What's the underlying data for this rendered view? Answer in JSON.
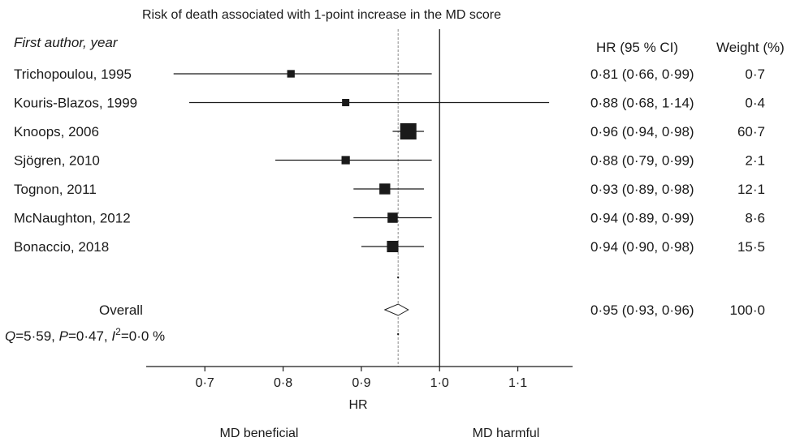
{
  "chart_data": {
    "type": "forest",
    "title": "Risk of death associated with 1-point increase in the MD score",
    "column_headers": {
      "study": "First author, year",
      "effect": "HR (95 % CI)",
      "weight": "Weight (%)"
    },
    "studies": [
      {
        "label": "Trichopoulou, 1995",
        "hr": 0.81,
        "lower": 0.66,
        "upper": 0.99,
        "hr_text": "0·81 (0·66, 0·99)",
        "weight": 0.7,
        "weight_text": "0·7"
      },
      {
        "label": "Kouris-Blazos, 1999",
        "hr": 0.88,
        "lower": 0.68,
        "upper": 1.14,
        "hr_text": "0·88 (0·68, 1·14)",
        "weight": 0.4,
        "weight_text": "0·4"
      },
      {
        "label": "Knoops, 2006",
        "hr": 0.96,
        "lower": 0.94,
        "upper": 0.98,
        "hr_text": "0·96 (0·94, 0·98)",
        "weight": 60.7,
        "weight_text": "60·7"
      },
      {
        "label": "Sjögren, 2010",
        "hr": 0.88,
        "lower": 0.79,
        "upper": 0.99,
        "hr_text": "0·88 (0·79, 0·99)",
        "weight": 2.1,
        "weight_text": "2·1"
      },
      {
        "label": "Tognon, 2011",
        "hr": 0.93,
        "lower": 0.89,
        "upper": 0.98,
        "hr_text": "0·93 (0·89, 0·98)",
        "weight": 12.1,
        "weight_text": "12·1"
      },
      {
        "label": "McNaughton, 2012",
        "hr": 0.94,
        "lower": 0.89,
        "upper": 0.99,
        "hr_text": "0·94 (0·89, 0·99)",
        "weight": 8.6,
        "weight_text": "8·6"
      },
      {
        "label": "Bonaccio, 2018",
        "hr": 0.94,
        "lower": 0.9,
        "upper": 0.98,
        "hr_text": "0·94 (0·90, 0·98)",
        "weight": 15.5,
        "weight_text": "15·5"
      }
    ],
    "overall": {
      "label": "Overall",
      "hr": 0.947,
      "lower": 0.93,
      "upper": 0.96,
      "hr_text": "0·95 (0·93, 0·96)",
      "weight_text": "100·0"
    },
    "heterogeneity": {
      "Q_label": "Q",
      "Q_value": "=5·59, ",
      "P_label": "P",
      "P_value": "=0·47, ",
      "I_label": "I",
      "I_sup": "2",
      "I_value": "=0·0 %"
    },
    "null_line": 1.0,
    "pooled_line": 0.947,
    "xlim": [
      0.625,
      1.17
    ],
    "ticks": [
      0.7,
      0.8,
      0.9,
      1.0,
      1.1
    ],
    "tick_labels": [
      "0·7",
      "0·8",
      "0·9",
      "1·0",
      "1·1"
    ],
    "xlabel": "HR",
    "favours_left": "MD beneficial",
    "favours_right": "MD harmful"
  }
}
